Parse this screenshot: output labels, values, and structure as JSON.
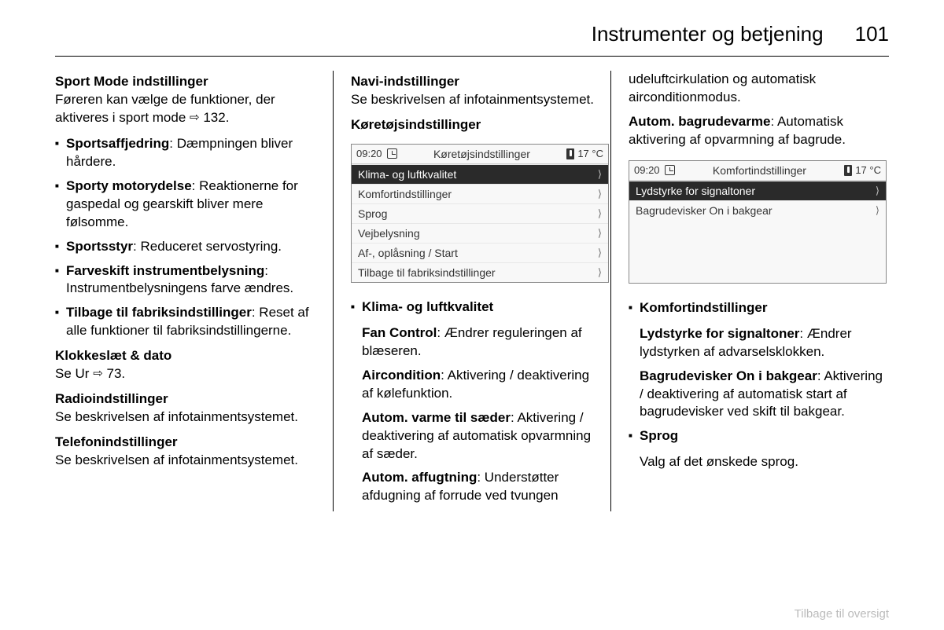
{
  "header": {
    "title": "Instrumenter og betjening",
    "page_number": "101"
  },
  "footer_link": "Tilbage til oversigt",
  "col1": {
    "sport_mode_heading": "Sport Mode indstillinger",
    "sport_mode_intro_1": "Føreren kan vælge de funktioner, der aktiveres i sport mode ",
    "sport_mode_ref": "132.",
    "items": [
      {
        "term": "Sportsaffjedring",
        "text": ": Dæmpningen bliver hårdere."
      },
      {
        "term": "Sporty motorydelse",
        "text": ": Reaktionerne for gaspedal og gearskift bliver mere følsomme."
      },
      {
        "term": "Sportsstyr",
        "text": ": Reduceret servostyring."
      },
      {
        "term": "Farveskift instrumentbelysning",
        "text": ": Instrumentbelysningens farve ændres."
      },
      {
        "term": "Tilbage til fabriksindstillinger",
        "text": ": Reset af alle funktioner til fabriksindstillingerne."
      }
    ],
    "clock_heading": "Klokkeslæt & dato",
    "clock_text_pre": "Se Ur ",
    "clock_ref": "73.",
    "radio_heading": "Radioindstillinger",
    "radio_text": "Se beskrivelsen af infotainmentsystemet.",
    "phone_heading": "Telefonindstillinger",
    "phone_text": "Se beskrivelsen af infotainmentsystemet."
  },
  "col2": {
    "navi_heading": "Navi-indstillinger",
    "navi_text": "Se beskrivelsen af infotainmentsystemet.",
    "vehicle_heading": "Køretøjsindstillinger",
    "display": {
      "time": "09:20",
      "title": "Køretøjsindstillinger",
      "temp": "17 °C",
      "items": [
        {
          "label": "Klima- og luftkvalitet",
          "selected": true
        },
        {
          "label": "Komfortindstillinger",
          "selected": false
        },
        {
          "label": "Sprog",
          "selected": false
        },
        {
          "label": "Vejbelysning",
          "selected": false
        },
        {
          "label": "Af-, oplåsning / Start",
          "selected": false
        },
        {
          "label": "Tilbage til fabriksindstillinger",
          "selected": false
        }
      ]
    },
    "klima_heading": "Klima- og luftkvalitet",
    "klima_items": [
      {
        "term": "Fan Control",
        "text": ": Ændrer reguleringen af blæseren."
      },
      {
        "term": "Aircondition",
        "text": ": Aktivering / deaktivering af kølefunktion."
      },
      {
        "term": "Autom. varme til sæder",
        "text": ": Aktivering / deaktivering af automatisk opvarmning af sæder."
      },
      {
        "term": "Autom. affugtning",
        "text": ": Understøtter afdugning af forrude ved tvungen"
      }
    ]
  },
  "col3": {
    "cont_text": "udeluftcirkulation og automatisk airconditionmodus.",
    "rear_term": "Autom. bagrudevarme",
    "rear_text": ": Automatisk aktivering af opvarmning af bagrude.",
    "display": {
      "time": "09:20",
      "title": "Komfortindstillinger",
      "temp": "17 °C",
      "items": [
        {
          "label": "Lydstyrke for signaltoner",
          "selected": true
        },
        {
          "label": "Bagrudevisker On i bakgear",
          "selected": false
        }
      ]
    },
    "comfort_heading": "Komfortindstillinger",
    "comfort_items": [
      {
        "term": "Lydstyrke for signaltoner",
        "text": ": Ændrer lydstyrken af advarselsklokken."
      },
      {
        "term": "Bagrudevisker On i bakgear",
        "text": ": Aktivering / deaktivering af automatisk start af bagrudevisker ved skift til bakgear."
      }
    ],
    "sprog_heading": "Sprog",
    "sprog_text": "Valg af det ønskede sprog."
  }
}
